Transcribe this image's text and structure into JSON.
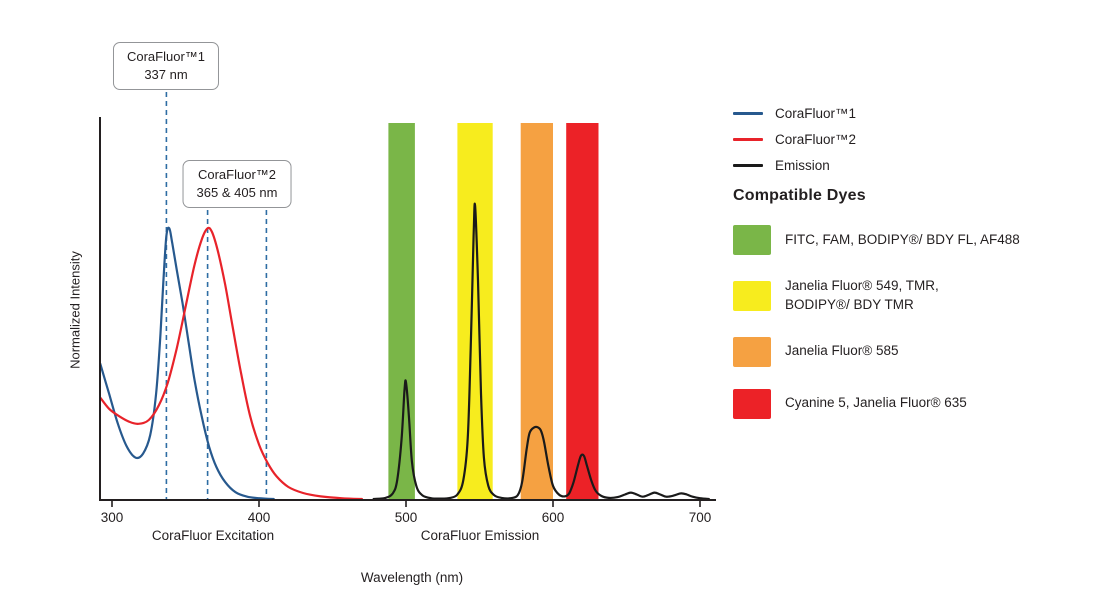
{
  "chart_data": {
    "type": "line",
    "xlabel": "Wavelength (nm)",
    "ylabel": "Normalized Intensity",
    "x_ticks": [
      300,
      400,
      500,
      600,
      700
    ],
    "xlim": [
      292,
      710
    ],
    "ylim": [
      0,
      1.0
    ],
    "grid": "off",
    "legend_position": "top-right",
    "region_labels": [
      "CoraFluor Excitation",
      "CoraFluor Emission"
    ],
    "marker_color": "#2e6da4",
    "excitation_markers_nm": [
      337,
      365,
      405
    ],
    "filter_bands": [
      {
        "key": "green",
        "color": "#7ab648",
        "from_nm": 488,
        "to_nm": 506
      },
      {
        "key": "yellow",
        "color": "#f7ec1e",
        "from_nm": 535,
        "to_nm": 559
      },
      {
        "key": "orange",
        "color": "#f5a142",
        "from_nm": 578,
        "to_nm": 600
      },
      {
        "key": "red",
        "color": "#ec2227",
        "from_nm": 609,
        "to_nm": 631
      }
    ],
    "series": [
      {
        "key": "corafluor1",
        "name": "CoraFluor™1",
        "role": "excitation",
        "color": "#27598e",
        "points": [
          [
            292,
            0.36
          ],
          [
            298,
            0.28
          ],
          [
            304,
            0.2
          ],
          [
            310,
            0.14
          ],
          [
            316,
            0.11
          ],
          [
            321,
            0.12
          ],
          [
            326,
            0.17
          ],
          [
            330,
            0.28
          ],
          [
            333,
            0.44
          ],
          [
            335,
            0.58
          ],
          [
            337,
            0.7
          ],
          [
            339,
            0.72
          ],
          [
            341,
            0.68
          ],
          [
            344,
            0.61
          ],
          [
            348,
            0.52
          ],
          [
            352,
            0.42
          ],
          [
            356,
            0.32
          ],
          [
            361,
            0.22
          ],
          [
            366,
            0.14
          ],
          [
            371,
            0.085
          ],
          [
            377,
            0.045
          ],
          [
            384,
            0.018
          ],
          [
            392,
            0.006
          ],
          [
            400,
            0.002
          ],
          [
            410,
            0
          ]
        ]
      },
      {
        "key": "corafluor2",
        "name": "CoraFluor™2",
        "role": "excitation",
        "color": "#e8232a",
        "points": [
          [
            292,
            0.27
          ],
          [
            298,
            0.24
          ],
          [
            305,
            0.22
          ],
          [
            312,
            0.205
          ],
          [
            318,
            0.2
          ],
          [
            325,
            0.21
          ],
          [
            332,
            0.25
          ],
          [
            338,
            0.31
          ],
          [
            344,
            0.4
          ],
          [
            350,
            0.51
          ],
          [
            356,
            0.62
          ],
          [
            361,
            0.69
          ],
          [
            365,
            0.72
          ],
          [
            368,
            0.71
          ],
          [
            372,
            0.66
          ],
          [
            377,
            0.57
          ],
          [
            382,
            0.46
          ],
          [
            388,
            0.33
          ],
          [
            394,
            0.22
          ],
          [
            400,
            0.145
          ],
          [
            406,
            0.095
          ],
          [
            412,
            0.06
          ],
          [
            420,
            0.032
          ],
          [
            430,
            0.016
          ],
          [
            442,
            0.007
          ],
          [
            456,
            0.002
          ],
          [
            470,
            0
          ]
        ]
      },
      {
        "key": "emission",
        "name": "Emission",
        "role": "emission",
        "color": "#1a1a1a",
        "points": [
          [
            478,
            0
          ],
          [
            486,
            0.003
          ],
          [
            491,
            0.015
          ],
          [
            494,
            0.05
          ],
          [
            497,
            0.16
          ],
          [
            499,
            0.29
          ],
          [
            500,
            0.31
          ],
          [
            502,
            0.22
          ],
          [
            504,
            0.1
          ],
          [
            507,
            0.035
          ],
          [
            511,
            0.01
          ],
          [
            517,
            0.002
          ],
          [
            524,
            0.001
          ],
          [
            530,
            0.003
          ],
          [
            535,
            0.012
          ],
          [
            539,
            0.05
          ],
          [
            542,
            0.16
          ],
          [
            544,
            0.4
          ],
          [
            546,
            0.7
          ],
          [
            547,
            0.78
          ],
          [
            549,
            0.58
          ],
          [
            551,
            0.28
          ],
          [
            553,
            0.11
          ],
          [
            556,
            0.035
          ],
          [
            560,
            0.01
          ],
          [
            565,
            0.003
          ],
          [
            571,
            0.002
          ],
          [
            576,
            0.01
          ],
          [
            579,
            0.045
          ],
          [
            582,
            0.13
          ],
          [
            584,
            0.175
          ],
          [
            587,
            0.19
          ],
          [
            590,
            0.19
          ],
          [
            592,
            0.18
          ],
          [
            594,
            0.15
          ],
          [
            597,
            0.085
          ],
          [
            600,
            0.035
          ],
          [
            604,
            0.012
          ],
          [
            608,
            0.007
          ],
          [
            611,
            0.015
          ],
          [
            614,
            0.045
          ],
          [
            617,
            0.09
          ],
          [
            619,
            0.115
          ],
          [
            621,
            0.115
          ],
          [
            623,
            0.09
          ],
          [
            626,
            0.05
          ],
          [
            629,
            0.022
          ],
          [
            633,
            0.008
          ],
          [
            638,
            0.003
          ],
          [
            644,
            0.005
          ],
          [
            649,
            0.012
          ],
          [
            653,
            0.017
          ],
          [
            657,
            0.012
          ],
          [
            661,
            0.006
          ],
          [
            665,
            0.011
          ],
          [
            669,
            0.017
          ],
          [
            673,
            0.012
          ],
          [
            677,
            0.006
          ],
          [
            682,
            0.009
          ],
          [
            687,
            0.015
          ],
          [
            691,
            0.012
          ],
          [
            695,
            0.006
          ],
          [
            700,
            0.002
          ],
          [
            706,
            0
          ]
        ]
      }
    ]
  },
  "callouts": [
    {
      "line1": "CoraFluor™1",
      "line2": "337 nm",
      "marker_nm": "337"
    },
    {
      "line1": "CoraFluor™2",
      "line2": "365 & 405 nm",
      "marker_nm": "365 & 405"
    }
  ],
  "legend": {
    "series": [
      {
        "label": "CoraFluor™1",
        "color": "#27598e"
      },
      {
        "label": "CoraFluor™2",
        "color": "#e8232a"
      },
      {
        "label": "Emission",
        "color": "#1a1a1a"
      }
    ],
    "dyes_title": "Compatible Dyes",
    "dyes": [
      {
        "key": "green",
        "color": "#7ab648",
        "label": "FITC, FAM, BODIPY®/ BDY FL, AF488"
      },
      {
        "key": "yellow",
        "color": "#f7ec1e",
        "label": "Janelia Fluor® 549, TMR,\nBODIPY®/ BDY TMR"
      },
      {
        "key": "orange",
        "color": "#f5a142",
        "label": "Janelia Fluor® 585"
      },
      {
        "key": "red",
        "color": "#ec2227",
        "label": "Cyanine 5, Janelia Fluor® 635"
      }
    ]
  }
}
